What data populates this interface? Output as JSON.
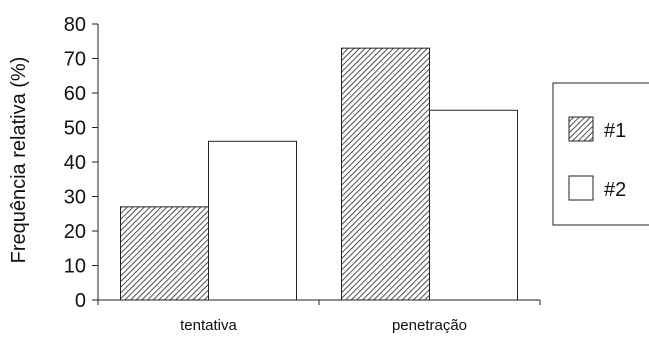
{
  "chart_data": {
    "type": "bar",
    "categories": [
      "tentativa",
      "penetração"
    ],
    "series": [
      {
        "name": "#1",
        "values": [
          27,
          73
        ],
        "pattern": "hatched"
      },
      {
        "name": "#2",
        "values": [
          46,
          55
        ],
        "pattern": "white"
      }
    ],
    "ylabel": "Frequência relativa (%)",
    "xlabel": "",
    "ylim": [
      0,
      80
    ],
    "yticks": [
      0,
      10,
      20,
      30,
      40,
      50,
      60,
      70,
      80
    ],
    "grid": false,
    "legend": "right"
  }
}
